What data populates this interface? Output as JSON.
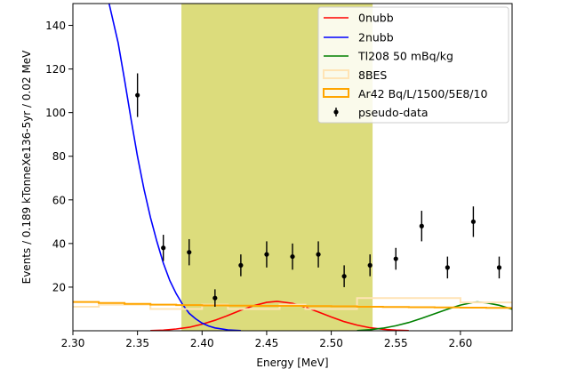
{
  "chart_data": {
    "type": "line",
    "title": "",
    "xlabel": "Energy [MeV]",
    "ylabel": "Events / 0.189 kTonneXe136-5yr / 0.02 MeV",
    "xlim": [
      2.3,
      2.64
    ],
    "ylim": [
      0,
      150
    ],
    "x_ticks": [
      2.3,
      2.35,
      2.4,
      2.45,
      2.5,
      2.55,
      2.6
    ],
    "x_tick_labels": [
      "2.30",
      "2.35",
      "2.40",
      "2.45",
      "2.50",
      "2.55",
      "2.60"
    ],
    "y_ticks": [
      20,
      40,
      60,
      80,
      100,
      120,
      140
    ],
    "y_tick_labels": [
      "20",
      "40",
      "60",
      "80",
      "100",
      "120",
      "140"
    ],
    "roi": {
      "x_start": 2.384,
      "x_end": 2.532,
      "color": "#dcdc7c"
    },
    "legend_position": "top-right",
    "series": [
      {
        "name": "0nubb",
        "kind": "line",
        "color": "#ff0000",
        "x": [
          2.36,
          2.37,
          2.38,
          2.39,
          2.4,
          2.41,
          2.42,
          2.43,
          2.44,
          2.45,
          2.458,
          2.47,
          2.48,
          2.49,
          2.5,
          2.51,
          2.52,
          2.53,
          2.54,
          2.55,
          2.56
        ],
        "y": [
          0.1,
          0.3,
          0.8,
          1.6,
          3.0,
          4.8,
          7.0,
          9.4,
          11.5,
          13.0,
          13.5,
          12.6,
          10.8,
          8.6,
          6.3,
          4.2,
          2.6,
          1.4,
          0.7,
          0.3,
          0.1
        ]
      },
      {
        "name": "2nubb",
        "kind": "line",
        "color": "#0000ff",
        "x": [
          2.328,
          2.335,
          2.34,
          2.345,
          2.35,
          2.355,
          2.36,
          2.365,
          2.37,
          2.375,
          2.38,
          2.385,
          2.39,
          2.395,
          2.4,
          2.405,
          2.41,
          2.42,
          2.43
        ],
        "y": [
          150,
          132,
          115,
          97,
          80,
          65,
          52,
          41,
          31,
          23,
          17,
          12,
          8,
          5.5,
          3.5,
          2.2,
          1.3,
          0.4,
          0.1
        ]
      },
      {
        "name": "Tl208 50 mBq/kg",
        "kind": "line",
        "color": "#008000",
        "x": [
          2.52,
          2.53,
          2.54,
          2.55,
          2.56,
          2.57,
          2.58,
          2.59,
          2.6,
          2.61,
          2.613,
          2.62,
          2.63,
          2.64
        ],
        "y": [
          0.1,
          0.5,
          1.2,
          2.3,
          3.8,
          5.7,
          7.8,
          9.9,
          11.8,
          13.0,
          13.2,
          12.8,
          11.7,
          9.9
        ]
      },
      {
        "name": "8BES",
        "kind": "step",
        "color": "#ffe4b5",
        "x_edges": [
          2.3,
          2.32,
          2.34,
          2.36,
          2.38,
          2.4,
          2.42,
          2.44,
          2.46,
          2.48,
          2.5,
          2.52,
          2.54,
          2.56,
          2.58,
          2.6,
          2.62,
          2.64
        ],
        "values": [
          11,
          12,
          12,
          10,
          10,
          12,
          10,
          10,
          12,
          10,
          10,
          15,
          15,
          15,
          15,
          13,
          13
        ]
      },
      {
        "name": "Ar42 Bq/L/1500/5E8/10",
        "kind": "step",
        "color": "#ffa500",
        "x_edges": [
          2.3,
          2.32,
          2.34,
          2.36,
          2.38,
          2.4,
          2.42,
          2.44,
          2.46,
          2.48,
          2.5,
          2.52,
          2.54,
          2.56,
          2.58,
          2.6,
          2.62,
          2.64
        ],
        "values": [
          13.2,
          12.7,
          12.3,
          12.0,
          11.8,
          11.6,
          11.5,
          11.4,
          11.4,
          11.3,
          11.2,
          11.0,
          10.9,
          10.8,
          10.7,
          10.6,
          10.5
        ]
      },
      {
        "name": "pseudo-data",
        "kind": "errorbar",
        "color": "#000000",
        "x": [
          2.35,
          2.37,
          2.39,
          2.41,
          2.43,
          2.45,
          2.47,
          2.49,
          2.51,
          2.53,
          2.55,
          2.57,
          2.59,
          2.61,
          2.63
        ],
        "y": [
          108,
          38,
          36,
          15,
          30,
          35,
          34,
          35,
          25,
          30,
          33,
          48,
          29,
          50,
          29
        ],
        "yerr": [
          10,
          6,
          6,
          4,
          5,
          6,
          6,
          6,
          5,
          5,
          5,
          7,
          5,
          7,
          5
        ]
      }
    ]
  }
}
